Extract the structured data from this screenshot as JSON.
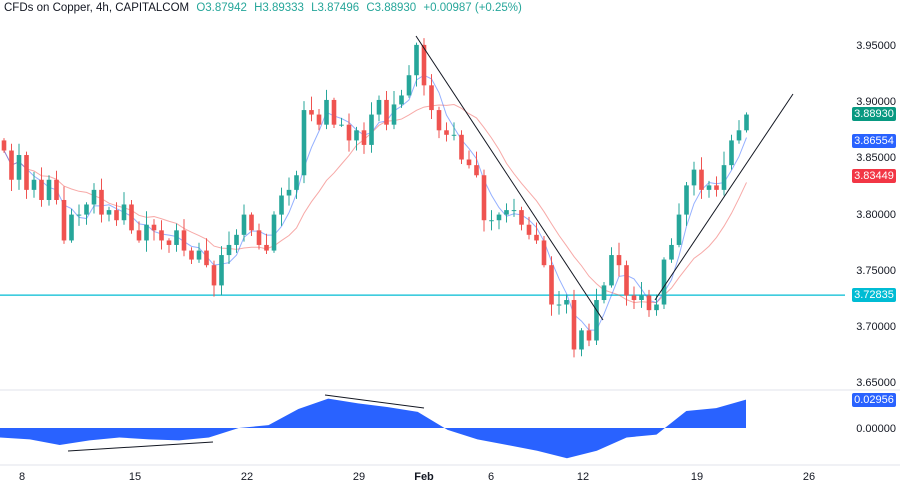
{
  "legend": {
    "symbol": "CFDs on Copper, 4h, CAPITALCOM",
    "open": "O3.87942",
    "high": "H3.89333",
    "low": "L3.87496",
    "close": "C3.88930",
    "change": "+0.00987 (+0.25%)"
  },
  "colors": {
    "up": "#26a69a",
    "down": "#ef5350",
    "ma_fast": "#2962ff",
    "ma_slow": "#ef5350",
    "hline": "#00bcd4",
    "oscillator": "#2962ff"
  },
  "price_axis": [
    "3.95000",
    "3.90000",
    "3.85000",
    "3.80000",
    "3.75000",
    "3.70000",
    "3.65000"
  ],
  "osc_axis": [
    "0.00000"
  ],
  "tags": {
    "last": {
      "text": "3.88930",
      "color": "#089981"
    },
    "ma_fast": {
      "text": "3.86554",
      "color": "#2962ff"
    },
    "ma_slow": {
      "text": "3.83449",
      "color": "#f23645"
    },
    "hline": {
      "text": "3.72835",
      "color": "#00bcd4"
    },
    "osc": {
      "text": "0.02956",
      "color": "#2962ff"
    }
  },
  "time_axis": [
    "8",
    "15",
    "22",
    "29",
    "Feb",
    "6",
    "12",
    "19",
    "26"
  ],
  "chart_data": {
    "type": "candlestick",
    "ylim": [
      3.63,
      3.97
    ],
    "first_open": 3.866,
    "closes": [
      3.857,
      3.831,
      3.853,
      3.822,
      3.831,
      3.813,
      3.831,
      3.813,
      3.777,
      3.8,
      3.8,
      3.809,
      3.822,
      3.8,
      3.804,
      3.795,
      3.809,
      3.786,
      3.777,
      3.791,
      3.786,
      3.777,
      3.773,
      3.786,
      3.768,
      3.76,
      3.768,
      3.755,
      3.737,
      3.764,
      3.773,
      3.782,
      3.8,
      3.786,
      3.773,
      3.768,
      3.8,
      3.817,
      3.822,
      3.835,
      3.893,
      3.889,
      3.88,
      3.902,
      3.88,
      3.88,
      3.866,
      3.875,
      3.862,
      3.889,
      3.902,
      3.88,
      3.898,
      3.906,
      3.924,
      3.951,
      3.915,
      3.893,
      3.875,
      3.871,
      3.871,
      3.849,
      3.844,
      3.835,
      3.795,
      3.795,
      3.8,
      3.804,
      3.804,
      3.791,
      3.782,
      3.777,
      3.755,
      3.72,
      3.72,
      3.724,
      3.68,
      3.697,
      3.688,
      3.724,
      3.737,
      3.764,
      3.755,
      3.728,
      3.724,
      3.728,
      3.715,
      3.72,
      3.76,
      3.773,
      3.8,
      3.826,
      3.84,
      3.822,
      3.826,
      3.822,
      3.844,
      3.866,
      3.875,
      3.889
    ],
    "horizontal_level": 3.72835,
    "oscillator": {
      "ylim": [
        -0.045,
        0.045
      ],
      "values": [
        -0.01,
        -0.012,
        -0.018,
        -0.013,
        -0.01,
        -0.012,
        -0.013,
        -0.01,
        0.0,
        0.003,
        0.02,
        0.031,
        0.026,
        0.022,
        0.017,
        -0.002,
        -0.012,
        -0.018,
        -0.024,
        -0.032,
        -0.024,
        -0.01,
        -0.007,
        0.018,
        0.021,
        0.03
      ]
    }
  }
}
